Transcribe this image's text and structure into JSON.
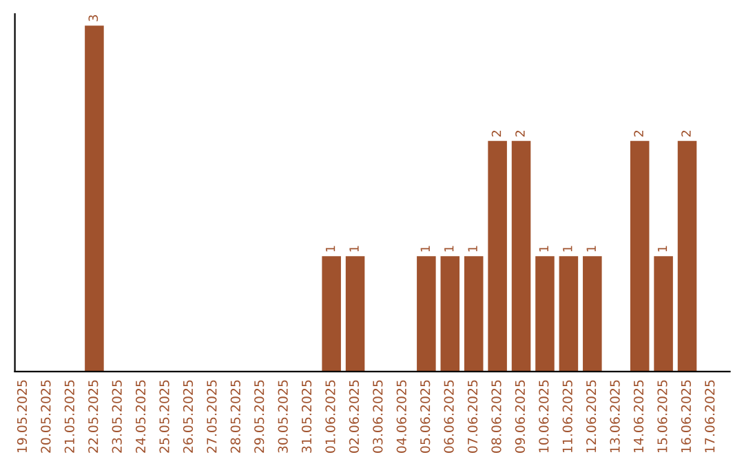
{
  "chart_data": {
    "type": "bar",
    "categories": [
      "19.05.2025",
      "20.05.2025",
      "21.05.2025",
      "22.05.2025",
      "23.05.2025",
      "24.05.2025",
      "25.05.2025",
      "26.05.2025",
      "27.05.2025",
      "28.05.2025",
      "29.05.2025",
      "30.05.2025",
      "31.05.2025",
      "01.06.2025",
      "02.06.2025",
      "03.06.2025",
      "04.06.2025",
      "05.06.2025",
      "06.06.2025",
      "07.06.2025",
      "08.06.2025",
      "09.06.2025",
      "10.06.2025",
      "11.06.2025",
      "12.06.2025",
      "13.06.2025",
      "14.06.2025",
      "15.06.2025",
      "16.06.2025",
      "17.06.2025"
    ],
    "values": [
      0,
      0,
      0,
      3,
      0,
      0,
      0,
      0,
      0,
      0,
      0,
      0,
      0,
      1,
      1,
      0,
      0,
      1,
      1,
      1,
      2,
      2,
      1,
      1,
      1,
      0,
      2,
      1,
      2,
      0
    ],
    "value_labels": [
      null,
      null,
      null,
      "3",
      null,
      null,
      null,
      null,
      null,
      null,
      null,
      null,
      null,
      "1",
      "1",
      null,
      null,
      "1",
      "1",
      "1",
      "2",
      "2",
      "1",
      "1",
      "1",
      null,
      "2",
      "1",
      "2",
      null
    ],
    "color": "#a0522d",
    "ylim": [
      0,
      3.1
    ],
    "tick_labels": "x",
    "grid": false
  }
}
